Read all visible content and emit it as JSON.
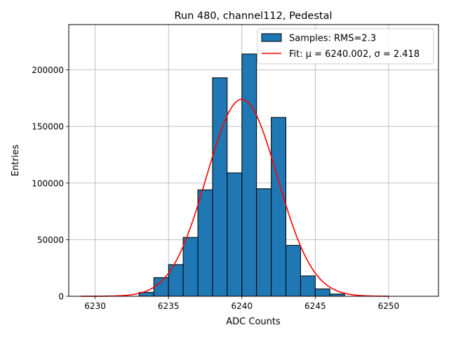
{
  "chart_data": {
    "type": "bar",
    "title": "Run 480, channel112, Pedestal",
    "xlabel": "ADC Counts",
    "ylabel": "Entries",
    "xlim": [
      6228.2,
      6253.4
    ],
    "ylim": [
      0,
      240000
    ],
    "x_ticks": [
      6230,
      6235,
      6240,
      6245,
      6250
    ],
    "y_ticks": [
      0,
      50000,
      100000,
      150000,
      200000
    ],
    "grid": true,
    "legend_position": "top-right",
    "bin_width": 1,
    "bins": [
      {
        "left": 6233,
        "value": 3500
      },
      {
        "left": 6234,
        "value": 16500
      },
      {
        "left": 6235,
        "value": 28000
      },
      {
        "left": 6236,
        "value": 52000
      },
      {
        "left": 6237,
        "value": 94000
      },
      {
        "left": 6238,
        "value": 193000
      },
      {
        "left": 6239,
        "value": 109000
      },
      {
        "left": 6240,
        "value": 214000
      },
      {
        "left": 6241,
        "value": 95000
      },
      {
        "left": 6242,
        "value": 158000
      },
      {
        "left": 6243,
        "value": 45000
      },
      {
        "left": 6244,
        "value": 18000
      },
      {
        "left": 6245,
        "value": 6500
      },
      {
        "left": 6246,
        "value": 2000
      }
    ],
    "fit": {
      "mu": 6240.002,
      "sigma": 2.418,
      "amplitude": 174000,
      "x_range": [
        6229,
        6250
      ]
    },
    "series": [
      {
        "name": "Samples: RMS=2.3",
        "kind": "histogram",
        "color": "#1f77b4",
        "edge_color": "#000000"
      },
      {
        "name": "Fit: μ = 6240.002, σ = 2.418",
        "kind": "line",
        "color": "#ff0000"
      }
    ]
  }
}
